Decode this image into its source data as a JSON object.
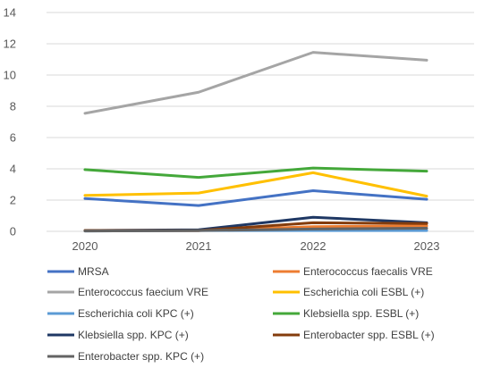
{
  "chart_data": {
    "type": "line",
    "title": "",
    "xlabel": "",
    "ylabel": "",
    "x": [
      "2020",
      "2021",
      "2022",
      "2023"
    ],
    "ylim": [
      0,
      14
    ],
    "yticks": [
      0,
      2,
      4,
      6,
      8,
      10,
      12,
      14
    ],
    "grid": true,
    "legend_position": "bottom",
    "series": [
      {
        "name": "MRSA",
        "color": "#4472c4",
        "values": [
          2.1,
          1.65,
          2.6,
          2.05
        ]
      },
      {
        "name": "Enterococcus faecalis VRE",
        "color": "#ed7d31",
        "values": [
          0.05,
          0.05,
          0.3,
          0.35
        ]
      },
      {
        "name": "Enterococcus faecium VRE",
        "color": "#a5a5a5",
        "values": [
          7.55,
          8.9,
          11.45,
          10.95
        ]
      },
      {
        "name": "Escherichia coli ESBL (+)",
        "color": "#ffc000",
        "values": [
          2.3,
          2.45,
          3.75,
          2.25
        ]
      },
      {
        "name": "Escherichia coli KPC (+)",
        "color": "#5b9bd5",
        "values": [
          0.02,
          0.05,
          0.05,
          0.05
        ]
      },
      {
        "name": "Klebsiella spp. ESBL (+)",
        "color": "#44a83a",
        "values": [
          3.95,
          3.45,
          4.05,
          3.85
        ]
      },
      {
        "name": "Klebsiella spp. KPC (+)",
        "color": "#1f3864",
        "values": [
          0.05,
          0.1,
          0.9,
          0.55
        ]
      },
      {
        "name": "Enterobacter spp. ESBL (+)",
        "color": "#843c0c",
        "values": [
          0.05,
          0.05,
          0.55,
          0.5
        ]
      },
      {
        "name": "Enterobacter spp. KPC (+)",
        "color": "#636363",
        "values": [
          0.02,
          0.05,
          0.15,
          0.2
        ]
      }
    ]
  }
}
